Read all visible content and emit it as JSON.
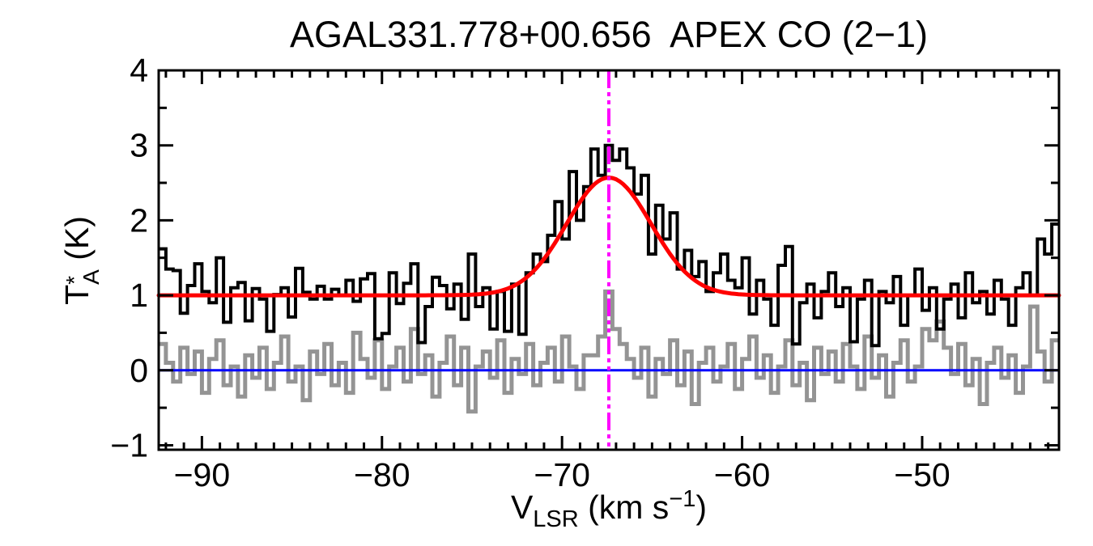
{
  "chart_data": {
    "type": "line",
    "title": "AGAL331.778+00.656  APEX CO (2−1)",
    "xlabel": {
      "base": "V",
      "sub": "LSR",
      "mid": " (km s",
      "sup": "−1",
      "end": ")"
    },
    "ylabel": {
      "base": "T",
      "sup": "*",
      "subscript": "A",
      "rest": " (K)"
    },
    "x_axis_unit": "km/s",
    "y_axis_unit": "K",
    "xlim": [
      -92.4,
      -42.4
    ],
    "ylim": [
      -1.06,
      4.0
    ],
    "grid": false,
    "legend": false,
    "x_axis": {
      "major_ticks": [
        {
          "value": -90,
          "label": "−90"
        },
        {
          "value": -80,
          "label": "−80"
        },
        {
          "value": -70,
          "label": "−70"
        },
        {
          "value": -60,
          "label": "−60"
        },
        {
          "value": -50,
          "label": "−50"
        }
      ],
      "minor_step": 1
    },
    "y_axis": {
      "major_ticks": [
        {
          "value": -1,
          "label": "−1"
        },
        {
          "value": 0,
          "label": "0"
        },
        {
          "value": 1,
          "label": "1"
        },
        {
          "value": 2,
          "label": "2"
        },
        {
          "value": 3,
          "label": "3"
        },
        {
          "value": 4,
          "label": "4"
        }
      ],
      "minor_step": 0.5
    },
    "colors": {
      "spectrum": "#000000",
      "reference": "#949494",
      "fit": "#FF0000",
      "zero_line": "#0000FF",
      "velocity_marker": "#FF00FF"
    },
    "series": [
      {
        "name": "reference_spectrum",
        "plot": "histogram",
        "color": "#949494",
        "line_width": 5,
        "v_start": -92.2,
        "v_step": 0.4,
        "values": [
          0.35,
          0.1,
          -0.15,
          0.3,
          -0.05,
          0.25,
          -0.3,
          0.15,
          0.4,
          -0.2,
          0.05,
          -0.35,
          0.2,
          -0.1,
          0.3,
          -0.25,
          0.1,
          0.45,
          -0.15,
          0.05,
          -0.4,
          0.25,
          -0.05,
          0.35,
          -0.2,
          0.1,
          -0.3,
          0.5,
          0.15,
          -0.1,
          0.4,
          -0.25,
          0.05,
          0.3,
          -0.15,
          0.55,
          -0.05,
          0.2,
          -0.35,
          0.1,
          0.45,
          -0.2,
          0.3,
          -0.55,
          0.05,
          0.25,
          -0.1,
          0.4,
          -0.3,
          0.15,
          -0.05,
          0.35,
          -0.2,
          0.1,
          0.3,
          -0.15,
          0.45,
          0.05,
          -0.25,
          0.2,
          0.2,
          0.45,
          1.05,
          0.55,
          0.35,
          0.15,
          -0.1,
          0.3,
          -0.35,
          0.15,
          -0.05,
          0.4,
          -0.2,
          0.25,
          -0.45,
          0.1,
          0.3,
          -0.15,
          0.05,
          0.35,
          -0.25,
          0.15,
          0.45,
          -0.1,
          0.2,
          -0.3,
          0.05,
          0.4,
          -0.2,
          0.1,
          -0.4,
          0.3,
          -0.05,
          0.25,
          -0.15,
          0.35,
          0.05,
          -0.25,
          0.45,
          -0.1,
          0.2,
          -0.35,
          0.1,
          0.4,
          -0.15,
          0.05,
          0.55,
          0.4,
          0.65,
          0.3,
          -0.05,
          0.35,
          -0.2,
          0.15,
          -0.45,
          0.1,
          0.3,
          -0.1,
          0.2,
          -0.3,
          0.05,
          0.85,
          0.25,
          -0.15,
          0.4
        ]
      },
      {
        "name": "zero_level",
        "plot": "hline",
        "color": "#0000FF",
        "line_width": 3,
        "y": 0.0
      },
      {
        "name": "co21_spectrum",
        "plot": "histogram",
        "color": "#000000",
        "line_width": 4,
        "v_start": -92.2,
        "v_step": 0.4,
        "values": [
          1.62,
          1.35,
          1.33,
          0.76,
          1.13,
          1.42,
          1.05,
          0.9,
          1.5,
          0.64,
          1.1,
          1.17,
          0.66,
          1.09,
          0.95,
          0.52,
          1.01,
          1.1,
          0.71,
          1.36,
          1.04,
          0.95,
          1.12,
          0.95,
          1.08,
          1.0,
          1.2,
          0.92,
          1.22,
          1.29,
          0.42,
          0.49,
          1.3,
          0.89,
          1.16,
          1.42,
          0.37,
          0.85,
          1.24,
          1.13,
          0.82,
          1.15,
          0.68,
          1.55,
          0.85,
          1.1,
          0.55,
          1.05,
          0.52,
          1.15,
          0.48,
          1.3,
          1.55,
          1.45,
          1.8,
          2.25,
          1.75,
          2.65,
          2.0,
          2.45,
          2.95,
          2.6,
          3.0,
          2.8,
          2.95,
          2.7,
          2.35,
          2.6,
          1.55,
          2.2,
          1.75,
          2.1,
          1.35,
          1.6,
          1.25,
          1.45,
          1.05,
          1.3,
          1.55,
          1.2,
          1.1,
          1.5,
          0.75,
          1.2,
          0.95,
          0.6,
          1.4,
          1.65,
          0.35,
          0.9,
          1.15,
          0.7,
          1.05,
          1.3,
          0.85,
          1.1,
          0.38,
          0.95,
          1.2,
          0.33,
          1.05,
          0.9,
          1.25,
          0.6,
          1.0,
          1.35,
          0.8,
          1.1,
          0.55,
          0.95,
          1.15,
          0.7,
          1.3,
          0.9,
          1.05,
          0.75,
          1.2,
          0.95,
          0.6,
          1.1,
          1.3,
          1.0,
          1.75,
          1.55,
          1.95
        ]
      },
      {
        "name": "gaussian_fit",
        "plot": "gaussian",
        "color": "#FF0000",
        "line_width": 5,
        "baseline": 1.0,
        "amplitude": 1.57,
        "center": -67.4,
        "sigma": 2.35
      },
      {
        "name": "systemic_velocity_marker",
        "plot": "vline",
        "color": "#FF00FF",
        "line_width": 4,
        "x": -67.4,
        "style": "dash-dot-dot"
      }
    ]
  }
}
